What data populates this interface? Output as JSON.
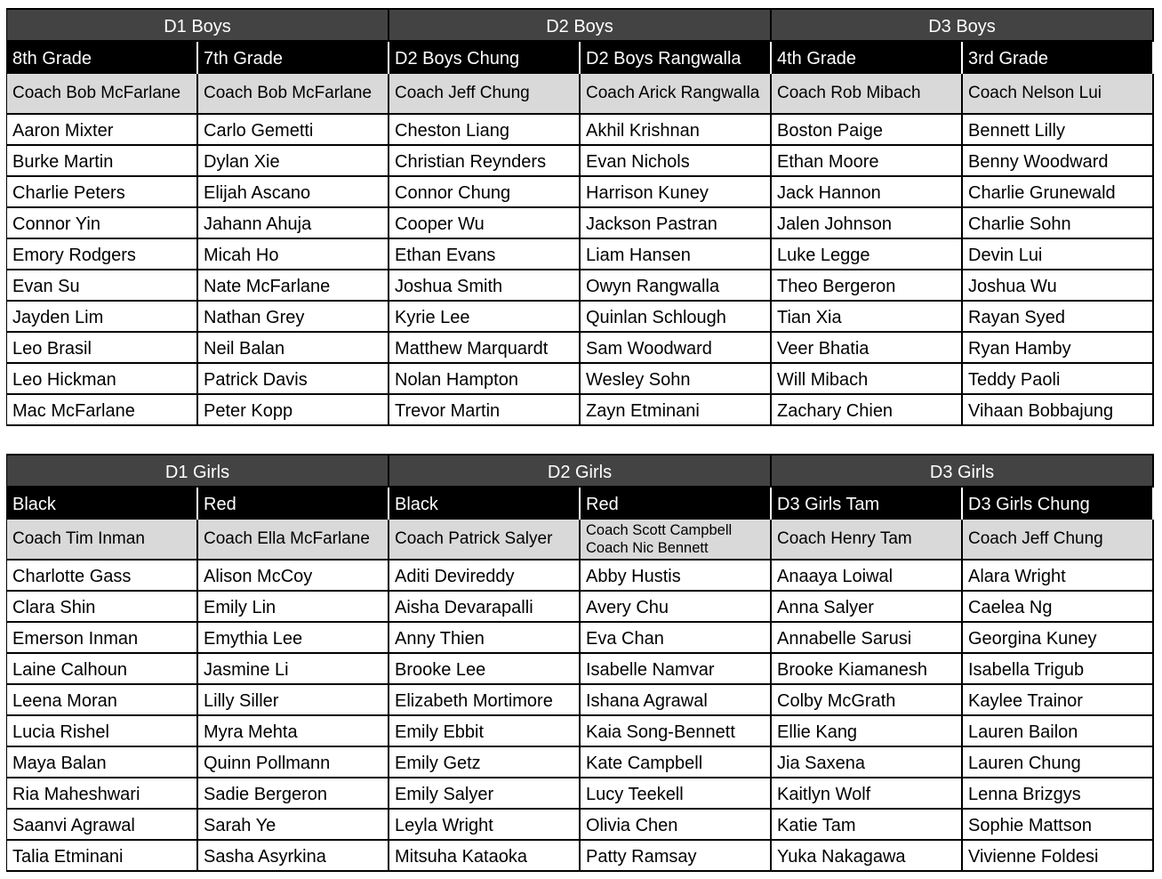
{
  "tables": [
    {
      "divisions": [
        {
          "title": "D1 Boys",
          "teams": [
            {
              "name": "8th Grade",
              "coaches": [
                "Coach Bob McFarlane"
              ],
              "players": [
                "Aaron Mixter",
                "Burke Martin",
                "Charlie Peters",
                "Connor Yin",
                "Emory Rodgers",
                "Evan Su",
                "Jayden Lim",
                "Leo Brasil",
                "Leo Hickman",
                "Mac McFarlane"
              ]
            },
            {
              "name": "7th Grade",
              "coaches": [
                "Coach Bob McFarlane"
              ],
              "players": [
                "Carlo Gemetti",
                "Dylan Xie",
                "Elijah Ascano",
                "Jahann Ahuja",
                "Micah Ho",
                "Nate McFarlane",
                "Nathan Grey",
                "Neil Balan",
                "Patrick Davis",
                "Peter Kopp"
              ]
            }
          ]
        },
        {
          "title": "D2 Boys",
          "teams": [
            {
              "name": "D2 Boys Chung",
              "coaches": [
                "Coach Jeff Chung"
              ],
              "players": [
                "Cheston Liang",
                "Christian Reynders",
                "Connor Chung",
                "Cooper Wu",
                "Ethan Evans",
                "Joshua Smith",
                "Kyrie Lee",
                "Matthew Marquardt",
                "Nolan Hampton",
                "Trevor Martin"
              ]
            },
            {
              "name": "D2 Boys Rangwalla",
              "coaches": [
                "Coach Arick Rangwalla"
              ],
              "players": [
                "Akhil Krishnan",
                "Evan Nichols",
                "Harrison Kuney",
                "Jackson Pastran",
                "Liam Hansen",
                "Owyn Rangwalla",
                "Quinlan Schlough",
                "Sam Woodward",
                "Wesley Sohn",
                "Zayn Etminani"
              ]
            }
          ]
        },
        {
          "title": "D3 Boys",
          "teams": [
            {
              "name": "4th Grade",
              "coaches": [
                "Coach Rob Mibach"
              ],
              "players": [
                "Boston Paige",
                "Ethan Moore",
                "Jack Hannon",
                "Jalen Johnson",
                "Luke Legge",
                "Theo Bergeron",
                "Tian Xia",
                "Veer Bhatia",
                "Will Mibach",
                "Zachary Chien"
              ]
            },
            {
              "name": "3rd Grade",
              "coaches": [
                "Coach Nelson Lui"
              ],
              "players": [
                "Bennett Lilly",
                "Benny Woodward",
                "Charlie Grunewald",
                "Charlie Sohn",
                "Devin Lui",
                "Joshua Wu",
                "Rayan Syed",
                "Ryan Hamby",
                "Teddy Paoli",
                "Vihaan Bobbajung"
              ]
            }
          ]
        }
      ]
    },
    {
      "divisions": [
        {
          "title": "D1 Girls",
          "teams": [
            {
              "name": "Black",
              "coaches": [
                "Coach Tim Inman"
              ],
              "players": [
                "Charlotte Gass",
                "Clara Shin",
                "Emerson Inman",
                "Laine Calhoun",
                "Leena Moran",
                "Lucia Rishel",
                "Maya Balan",
                "Ria Maheshwari",
                "Saanvi Agrawal",
                "Talia Etminani"
              ]
            },
            {
              "name": "Red",
              "coaches": [
                "Coach Ella McFarlane"
              ],
              "players": [
                "Alison McCoy",
                "Emily Lin",
                "Emythia Lee",
                "Jasmine Li",
                "Lilly Siller",
                "Myra Mehta",
                "Quinn Pollmann",
                "Sadie Bergeron",
                "Sarah Ye",
                "Sasha Asyrkina"
              ]
            }
          ]
        },
        {
          "title": "D2 Girls",
          "teams": [
            {
              "name": "Black",
              "coaches": [
                "Coach Patrick Salyer"
              ],
              "players": [
                "Aditi Devireddy",
                "Aisha Devarapalli",
                "Anny Thien",
                "Brooke Lee",
                "Elizabeth Mortimore",
                "Emily Ebbit",
                "Emily Getz",
                "Emily Salyer",
                "Leyla Wright",
                "Mitsuha Kataoka"
              ]
            },
            {
              "name": "Red",
              "coaches": [
                "Coach Scott Campbell",
                "Coach Nic Bennett"
              ],
              "players": [
                "Abby Hustis",
                "Avery Chu",
                "Eva Chan",
                "Isabelle Namvar",
                "Ishana Agrawal",
                "Kaia Song-Bennett",
                "Kate Campbell",
                "Lucy Teekell",
                "Olivia Chen",
                "Patty Ramsay"
              ]
            }
          ]
        },
        {
          "title": "D3 Girls",
          "teams": [
            {
              "name": "D3 Girls Tam",
              "coaches": [
                "Coach Henry Tam"
              ],
              "players": [
                "Anaaya Loiwal",
                "Anna Salyer",
                "Annabelle Sarusi",
                "Brooke Kiamanesh",
                "Colby McGrath",
                "Ellie Kang",
                "Jia Saxena",
                "Kaitlyn Wolf",
                "Katie Tam",
                "Yuka Nakagawa"
              ]
            },
            {
              "name": "D3 Girls Chung",
              "coaches": [
                "Coach Jeff Chung"
              ],
              "players": [
                "Alara Wright",
                "Caelea Ng",
                "Georgina Kuney",
                "Isabella Trigub",
                "Kaylee Trainor",
                "Lauren Bailon",
                "Lauren Chung",
                "Lenna Brizgys",
                "Sophie Mattson",
                "Vivienne Foldesi"
              ]
            }
          ]
        }
      ]
    }
  ]
}
